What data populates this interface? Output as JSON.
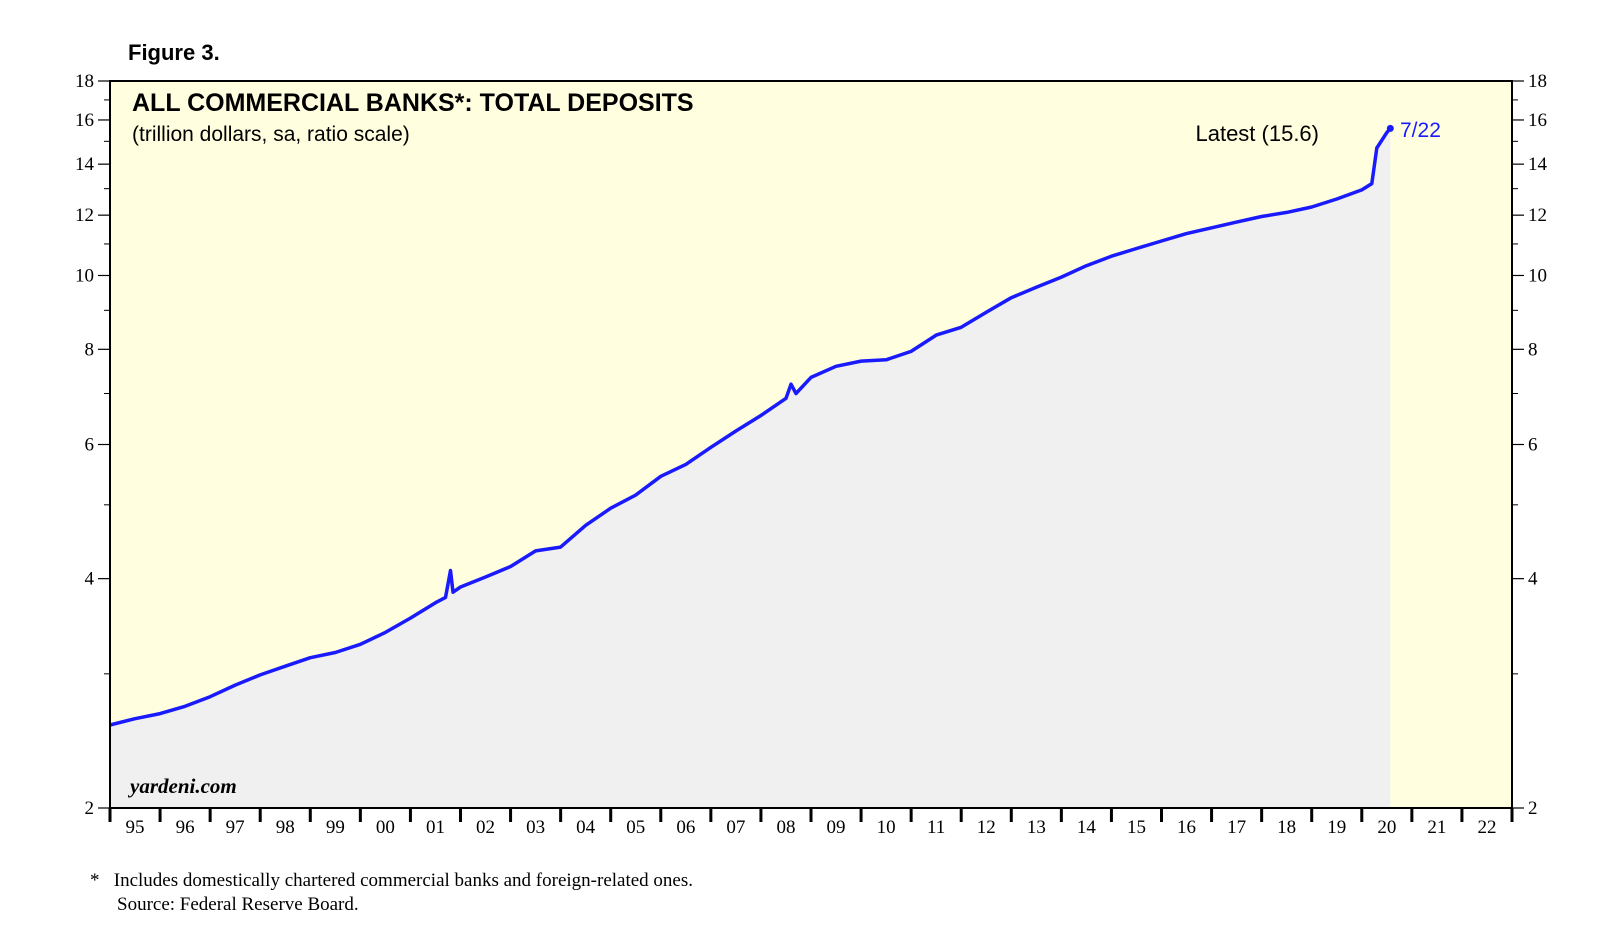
{
  "figure_label": "Figure 3.",
  "chart_data": {
    "type": "line",
    "title": "ALL COMMERCIAL BANKS*: TOTAL DEPOSITS",
    "subtitle": "(trillion dollars, sa, ratio scale)",
    "scale": "log",
    "ylim": [
      2,
      18
    ],
    "xlim": [
      1995.0,
      2023.0
    ],
    "y_ticks_labeled": [
      "2",
      "4",
      "6",
      "8",
      "10",
      "12",
      "14",
      "16",
      "18"
    ],
    "y_ticks_minor": [
      3,
      5,
      7,
      9,
      11,
      13,
      15,
      17
    ],
    "x_tick_labels": [
      "95",
      "96",
      "97",
      "98",
      "99",
      "00",
      "01",
      "02",
      "03",
      "04",
      "05",
      "06",
      "07",
      "08",
      "09",
      "10",
      "11",
      "12",
      "13",
      "14",
      "15",
      "16",
      "17",
      "18",
      "19",
      "20",
      "21",
      "22"
    ],
    "series": [
      {
        "name": "Total deposits",
        "color": "#1a1aff",
        "points": [
          [
            1995.0,
            2.57
          ],
          [
            1995.5,
            2.62
          ],
          [
            1996.0,
            2.66
          ],
          [
            1996.5,
            2.72
          ],
          [
            1997.0,
            2.8
          ],
          [
            1997.5,
            2.9
          ],
          [
            1998.0,
            2.99
          ],
          [
            1998.5,
            3.07
          ],
          [
            1999.0,
            3.15
          ],
          [
            1999.5,
            3.2
          ],
          [
            2000.0,
            3.28
          ],
          [
            2000.5,
            3.4
          ],
          [
            2001.0,
            3.55
          ],
          [
            2001.5,
            3.72
          ],
          [
            2001.7,
            3.78
          ],
          [
            2001.8,
            4.1
          ],
          [
            2001.85,
            3.84
          ],
          [
            2002.0,
            3.9
          ],
          [
            2002.5,
            4.02
          ],
          [
            2003.0,
            4.15
          ],
          [
            2003.5,
            4.35
          ],
          [
            2004.0,
            4.4
          ],
          [
            2004.5,
            4.7
          ],
          [
            2005.0,
            4.95
          ],
          [
            2005.5,
            5.15
          ],
          [
            2006.0,
            5.45
          ],
          [
            2006.5,
            5.65
          ],
          [
            2007.0,
            5.95
          ],
          [
            2007.5,
            6.25
          ],
          [
            2008.0,
            6.55
          ],
          [
            2008.5,
            6.9
          ],
          [
            2008.6,
            7.2
          ],
          [
            2008.7,
            7.0
          ],
          [
            2009.0,
            7.35
          ],
          [
            2009.5,
            7.6
          ],
          [
            2010.0,
            7.72
          ],
          [
            2010.5,
            7.75
          ],
          [
            2011.0,
            7.95
          ],
          [
            2011.5,
            8.35
          ],
          [
            2012.0,
            8.55
          ],
          [
            2012.5,
            8.95
          ],
          [
            2013.0,
            9.35
          ],
          [
            2013.5,
            9.65
          ],
          [
            2014.0,
            9.95
          ],
          [
            2014.5,
            10.3
          ],
          [
            2015.0,
            10.6
          ],
          [
            2015.5,
            10.85
          ],
          [
            2016.0,
            11.1
          ],
          [
            2016.5,
            11.35
          ],
          [
            2017.0,
            11.55
          ],
          [
            2017.5,
            11.75
          ],
          [
            2018.0,
            11.95
          ],
          [
            2018.5,
            12.1
          ],
          [
            2019.0,
            12.3
          ],
          [
            2019.5,
            12.6
          ],
          [
            2020.0,
            12.95
          ],
          [
            2020.2,
            13.2
          ],
          [
            2020.3,
            14.7
          ],
          [
            2020.5,
            15.4
          ],
          [
            2020.57,
            15.6
          ]
        ]
      }
    ],
    "latest_label": "Latest (15.6)",
    "latest_date_label": "7/22",
    "watermark": "yardeni.com"
  },
  "footnote": {
    "line1": "*   Includes domestically chartered commercial banks and foreign-related ones.",
    "line2": "Source: Federal Reserve Board."
  },
  "colors": {
    "plot_background": "#ffffe0",
    "shaded_area": "#f0f0f0",
    "line": "#1a1aff",
    "accent_text": "#1a1aff"
  }
}
